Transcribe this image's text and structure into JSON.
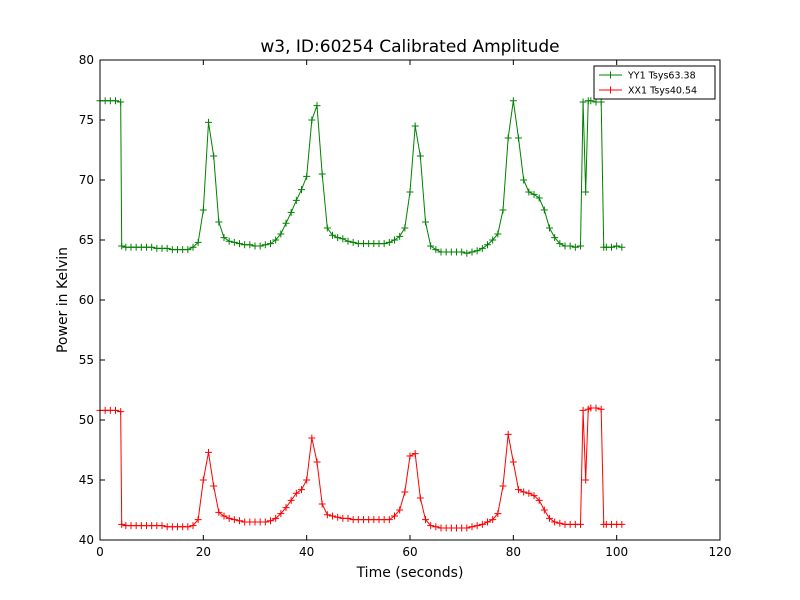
{
  "chart_data": {
    "type": "line",
    "title": "w3, ID:60254 Calibrated Amplitude",
    "xlabel": "Time (seconds)",
    "ylabel": "Power in Kelvin",
    "xlim": [
      0,
      120
    ],
    "ylim": [
      40,
      80
    ],
    "xticks": [
      0,
      20,
      40,
      60,
      80,
      100,
      120
    ],
    "yticks": [
      40,
      45,
      50,
      55,
      60,
      65,
      70,
      75,
      80
    ],
    "grid": false,
    "legend_position": "top-right",
    "marker": "plus",
    "series": [
      {
        "name": "YY1 Tsys63.38",
        "color": "#008000",
        "x": [
          0,
          1,
          2,
          3,
          4,
          4.2,
          5,
          6,
          7,
          8,
          9,
          10,
          11,
          12,
          13,
          14,
          15,
          16,
          17,
          18,
          19,
          20,
          21,
          22,
          23,
          24,
          25,
          26,
          27,
          28,
          29,
          30,
          31,
          32,
          33,
          34,
          35,
          36,
          37,
          38,
          39,
          40,
          41,
          42,
          43,
          44,
          45,
          46,
          47,
          48,
          49,
          50,
          51,
          52,
          53,
          54,
          55,
          56,
          57,
          58,
          59,
          60,
          61,
          62,
          63,
          64,
          65,
          66,
          67,
          68,
          69,
          70,
          71,
          72,
          73,
          74,
          75,
          76,
          77,
          78,
          79,
          80,
          81,
          82,
          83,
          84,
          85,
          86,
          87,
          88,
          89,
          90,
          91,
          92,
          93,
          93.5,
          94,
          94.5,
          95,
          96,
          97,
          97.5,
          98,
          99,
          100,
          101
        ],
        "y": [
          76.6,
          76.6,
          76.6,
          76.6,
          76.5,
          64.5,
          64.4,
          64.4,
          64.4,
          64.4,
          64.4,
          64.4,
          64.3,
          64.3,
          64.3,
          64.2,
          64.2,
          64.2,
          64.2,
          64.4,
          64.8,
          67.5,
          74.8,
          72.0,
          66.5,
          65.2,
          64.9,
          64.8,
          64.7,
          64.6,
          64.6,
          64.5,
          64.5,
          64.6,
          64.7,
          65.0,
          65.5,
          66.4,
          67.3,
          68.3,
          69.2,
          70.3,
          75.0,
          76.2,
          70.5,
          66.0,
          65.4,
          65.2,
          65.1,
          64.9,
          64.8,
          64.7,
          64.7,
          64.7,
          64.7,
          64.7,
          64.7,
          64.8,
          65.0,
          65.3,
          66.0,
          69.0,
          74.5,
          72.0,
          66.5,
          64.5,
          64.2,
          64.0,
          64.0,
          64.0,
          64.0,
          64.0,
          63.9,
          64.0,
          64.1,
          64.3,
          64.6,
          65.0,
          65.5,
          67.5,
          73.5,
          76.6,
          73.5,
          70.0,
          69.0,
          68.8,
          68.5,
          67.5,
          66.0,
          65.2,
          64.7,
          64.5,
          64.5,
          64.4,
          64.5,
          76.5,
          69.0,
          76.6,
          76.6,
          76.5,
          76.5,
          64.4,
          64.4,
          64.4,
          64.5,
          64.4
        ]
      },
      {
        "name": "XX1 Tsys40.54",
        "color": "#ff0000",
        "x": [
          0,
          1,
          2,
          3,
          4,
          4.2,
          5,
          6,
          7,
          8,
          9,
          10,
          11,
          12,
          13,
          14,
          15,
          16,
          17,
          18,
          19,
          20,
          21,
          22,
          23,
          24,
          25,
          26,
          27,
          28,
          29,
          30,
          31,
          32,
          33,
          34,
          35,
          36,
          37,
          38,
          39,
          40,
          41,
          42,
          43,
          44,
          45,
          46,
          47,
          48,
          49,
          50,
          51,
          52,
          53,
          54,
          55,
          56,
          57,
          58,
          59,
          60,
          61,
          62,
          63,
          64,
          65,
          66,
          67,
          68,
          69,
          70,
          71,
          72,
          73,
          74,
          75,
          76,
          77,
          78,
          79,
          80,
          81,
          82,
          83,
          84,
          85,
          86,
          87,
          88,
          89,
          90,
          91,
          92,
          93,
          93.5,
          94,
          94.5,
          95,
          96,
          97,
          97.5,
          98,
          99,
          100,
          101
        ],
        "y": [
          50.8,
          50.8,
          50.8,
          50.8,
          50.7,
          41.3,
          41.2,
          41.2,
          41.2,
          41.2,
          41.2,
          41.2,
          41.2,
          41.2,
          41.1,
          41.1,
          41.1,
          41.1,
          41.1,
          41.2,
          41.7,
          45.0,
          47.3,
          44.5,
          42.3,
          42.0,
          41.8,
          41.7,
          41.6,
          41.5,
          41.5,
          41.5,
          41.5,
          41.5,
          41.6,
          41.8,
          42.2,
          42.7,
          43.3,
          43.9,
          44.2,
          45.0,
          48.5,
          46.5,
          43.0,
          42.1,
          42.0,
          41.9,
          41.8,
          41.8,
          41.7,
          41.7,
          41.7,
          41.7,
          41.7,
          41.7,
          41.7,
          41.7,
          42.0,
          42.5,
          44.0,
          47.0,
          47.2,
          43.5,
          41.7,
          41.2,
          41.1,
          41.0,
          41.0,
          41.0,
          41.0,
          41.0,
          41.0,
          41.1,
          41.2,
          41.3,
          41.5,
          41.7,
          42.2,
          44.5,
          48.8,
          46.5,
          44.2,
          44.0,
          43.9,
          43.7,
          43.3,
          42.5,
          41.8,
          41.5,
          41.4,
          41.3,
          41.3,
          41.3,
          41.3,
          50.8,
          45.0,
          50.9,
          51.0,
          51.0,
          50.9,
          41.3,
          41.3,
          41.3,
          41.3,
          41.3
        ]
      }
    ]
  }
}
